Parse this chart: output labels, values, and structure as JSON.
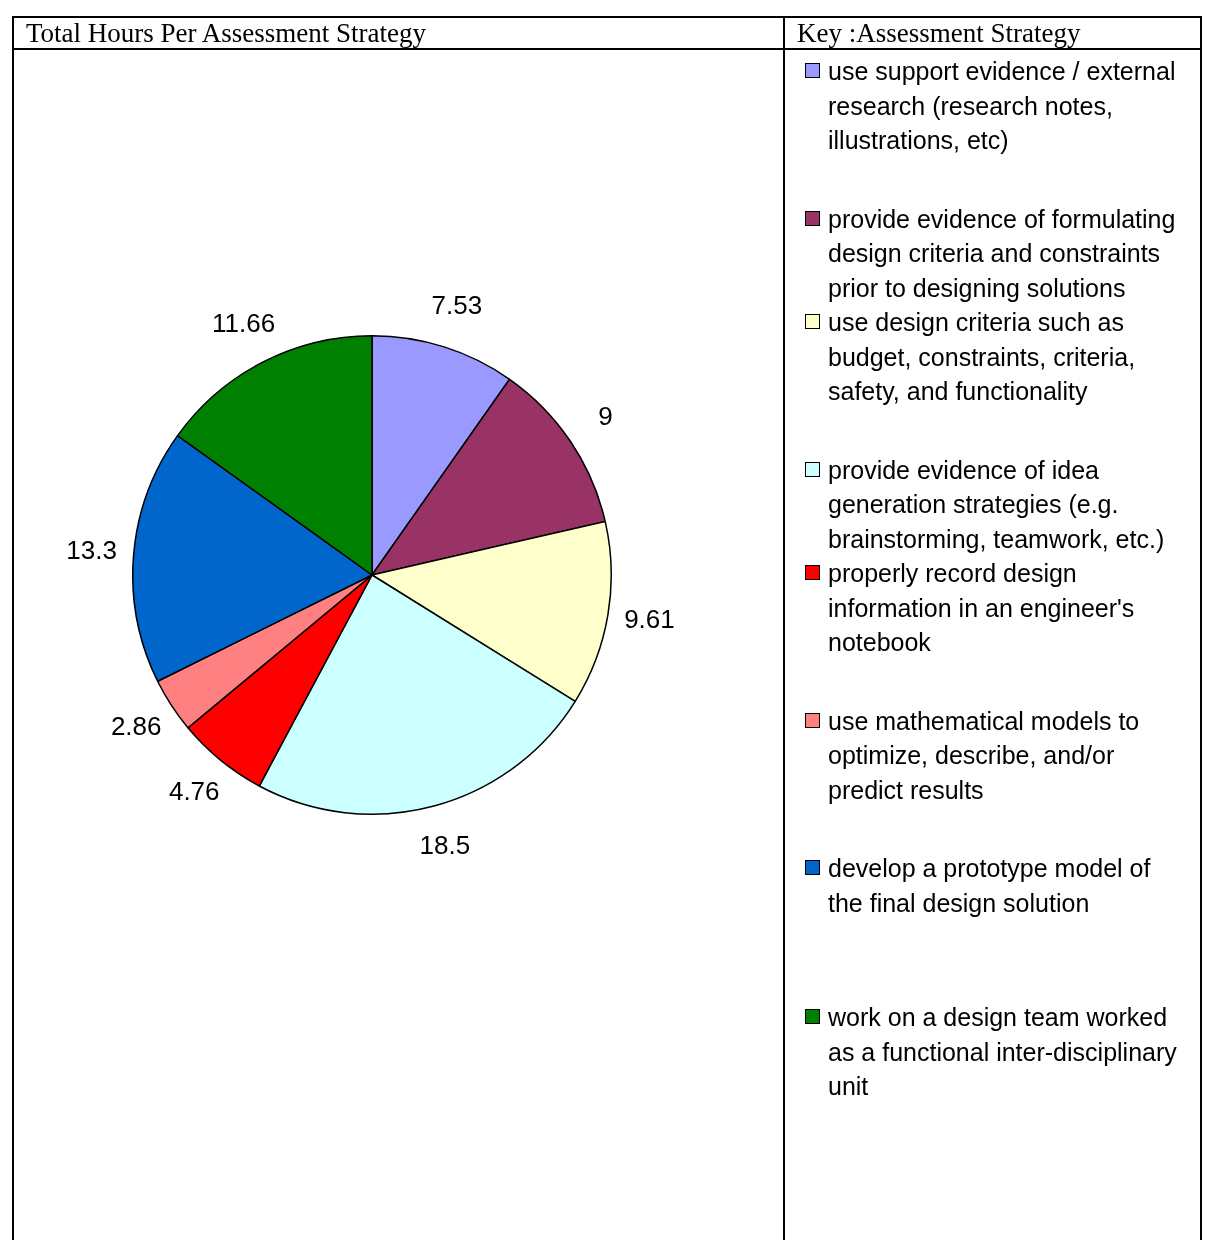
{
  "chart_data": {
    "type": "pie",
    "title": "Total Hours Per Assessment Strategy",
    "legend_title": "Key :Assessment Strategy",
    "categories": [
      "use support evidence / external research (research notes, illustrations, etc)",
      "provide evidence of formulating design criteria and constraints prior to designing solutions",
      "use design criteria such as budget, constraints, criteria, safety, and functionality",
      "provide evidence of idea generation strategies (e.g. brainstorming, teamwork, etc.)",
      "properly record design information in an engineer's notebook",
      "use mathematical models to optimize, describe, and/or predict results",
      "develop a prototype model of the final design solution",
      "work on a design team worked as a functional inter-disciplinary unit"
    ],
    "values": [
      7.53,
      9,
      9.61,
      18.5,
      4.76,
      2.86,
      13.3,
      11.66
    ],
    "colors": [
      "#9999ff",
      "#993366",
      "#ffffcc",
      "#ccffff",
      "#ff0000",
      "#ff8080",
      "#0066cc",
      "#008000"
    ],
    "data_labels": true,
    "legend": "right"
  }
}
